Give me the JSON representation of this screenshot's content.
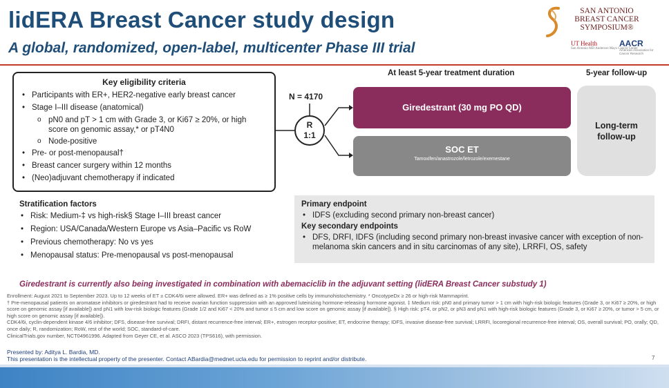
{
  "title": "lidERA Breast Cancer study design",
  "subtitle": "A global, randomized, open-label, multicenter Phase III trial",
  "logo": {
    "sabcs_lines": [
      "SAN ANTONIO",
      "BREAST CANCER",
      "SYMPOSIUM®"
    ],
    "ut": "UT Health",
    "ut_sub": "San Antonio MD Anderson Mays Cancer Center",
    "aacr": "AACR",
    "aacr_sub": "American Association for Cancer Research"
  },
  "eligibility": {
    "heading": "Key eligibility criteria",
    "items": [
      {
        "level": 1,
        "text": "Participants with ER+, HER2-negative early breast cancer"
      },
      {
        "level": 1,
        "text": "Stage I–III disease (anatomical)"
      },
      {
        "level": 2,
        "text": "pN0 and pT > 1 cm with Grade 3, or Ki67 ≥ 20%, or high score on genomic assay,* or pT4N0"
      },
      {
        "level": 2,
        "text": "Node-positive"
      },
      {
        "level": 1,
        "text": "Pre- or post-menopausal†"
      },
      {
        "level": 1,
        "text": "Breast cancer surgery within 12 months"
      },
      {
        "level": 1,
        "text": "(Neo)adjuvant chemotherapy if indicated"
      }
    ]
  },
  "design": {
    "treatment_header": "At least 5-year treatment duration",
    "followup_header": "5-year follow-up",
    "n": "N = 4170",
    "randomization": [
      "R",
      "1:1"
    ],
    "arm1": "Giredestrant  (30 mg PO QD)",
    "arm2_title": "SOC ET",
    "arm2_sub": "Tamoxifen/anastrozole/letrozole/exemestane",
    "followup_lines": [
      "Long-term",
      "follow-up"
    ]
  },
  "stratification": {
    "heading": "Stratification factors",
    "items": [
      "Risk: Medium-‡ vs high-risk§ Stage I–III breast cancer",
      "Region: USA/Canada/Western Europe vs Asia–Pacific vs RoW",
      "Previous chemotherapy: No vs yes",
      "Menopausal status: Pre-menopausal vs post-menopausal"
    ]
  },
  "endpoints": {
    "primary_heading": "Primary endpoint",
    "primary_items": [
      "IDFS (excluding second primary non-breast cancer)"
    ],
    "secondary_heading": "Key secondary endpoints",
    "secondary_items": [
      "DFS, DRFI, IDFS (including second primary non-breast invasive cancer with exception of non-melanoma skin cancers and in situ carcinomas of any site), LRRFI, OS, safety"
    ]
  },
  "note": "Giredestrant is currently also being investigated in combination with abemaciclib in the adjuvant setting (lidERA Breast Cancer substudy 1)",
  "footnotes": [
    "Enrollment: August 2021 to September 2023. Up to 12 weeks of ET ± CDK4/6i were allowed. ER+ was defined as ≥ 1% positive cells by immunohistochemistry. * OncotypeDx ≥ 26 or high-risk Mammaprint.",
    "† Pre-menopausal patients on aromatase inhibitors or giredestrant had to receive ovarian function suppression with an approved luteinizing hormone-releasing hormone agonist. ‡ Medium risk: pN0 and primary tumor > 1 cm with high-risk biologic features (Grade 3, or Ki67 ≥ 20%, or high score on genomic assay [if available]) and pN1 with low-risk biologic features (Grade 1/2 and Ki67 < 20% and tumor ≤ 5 cm and low score on genomic assay [if available]). § High risk: pT4, or pN2, or pN3 and pN1 with high-risk biologic features (Grade 3, or Ki67 ≥ 20%, or tumor > 5 cm, or high score on genomic assay [if available]).",
    "CDK4/6i, cyclin-dependent kinase 4/6 inhibitor; DFS, disease-free survival; DRFI, distant recurrence-free interval; ER+, estrogen receptor-positive; ET, endocrine therapy; IDFS, invasive disease-free survival; LRRFI, locoregional recurrence-free interval; OS, overall survival; PO, orally; QD, once daily; R, randomization; RoW, rest of the world; SOC, standard-of-care.",
    "ClinicalTrials.gov number, NCT04961996. Adapted from Geyer CE, et al. ASCO 2023 (TPS616), with permission."
  ],
  "presented_by": "Presented by: Aditya L. Bardia, MD.",
  "copyright": "This presentation is the intellectual property of the presenter. Contact ABardia@mednet.ucla.edu for permission to reprint and/or distribute.",
  "page_number": "7",
  "colors": {
    "title": "#1f4e79",
    "arm1": "#8a2d5c",
    "arm2": "#888888",
    "accent_line": "#c0392b"
  }
}
